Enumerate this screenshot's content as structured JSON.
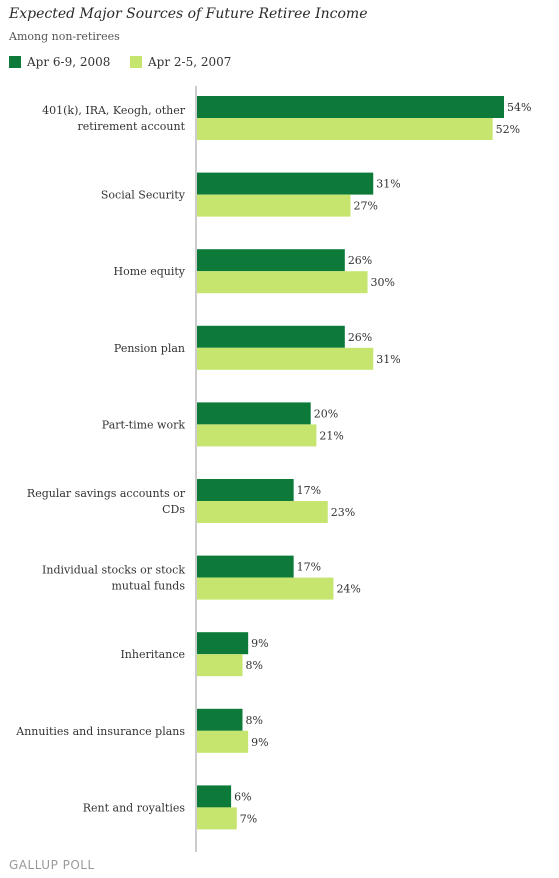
{
  "title": "Expected Major Sources of Future Retiree Income",
  "subtitle": "Among non-retirees",
  "footer": "GALLUP POLL",
  "colors": {
    "series1": "#0d7a3a",
    "series2": "#c6e56f",
    "axis": "#999999"
  },
  "chart_data": {
    "type": "bar",
    "orientation": "horizontal",
    "title": "Expected Major Sources of Future Retiree Income",
    "subtitle": "Among non-retirees",
    "categories": [
      [
        "401(k), IRA, Keogh, other",
        "retirement account"
      ],
      [
        "Social Security"
      ],
      [
        "Home equity"
      ],
      [
        "Pension plan"
      ],
      [
        "Part-time work"
      ],
      [
        "Regular savings accounts or",
        "CDs"
      ],
      [
        "Individual stocks or stock",
        "mutual funds"
      ],
      [
        "Inheritance"
      ],
      [
        "Annuities and insurance plans"
      ],
      [
        "Rent and royalties"
      ]
    ],
    "series": [
      {
        "name": "Apr 6-9, 2008",
        "values": [
          54,
          31,
          26,
          26,
          20,
          17,
          17,
          9,
          8,
          6
        ],
        "labels": [
          "54%",
          "31%",
          "26%",
          "26%",
          "20%",
          "17%",
          "17%",
          "9%",
          "8%",
          "6%"
        ]
      },
      {
        "name": "Apr 2-5, 2007",
        "values": [
          52,
          27,
          30,
          31,
          21,
          23,
          24,
          8,
          9,
          7
        ],
        "labels": [
          "52%",
          "27%",
          "30%",
          "31%",
          "21%",
          "23%",
          "24%",
          "8%",
          "9%",
          "7%"
        ]
      }
    ],
    "unit": "%",
    "xlim": [
      0,
      54
    ],
    "grid": false,
    "legend_position": "top-left"
  }
}
